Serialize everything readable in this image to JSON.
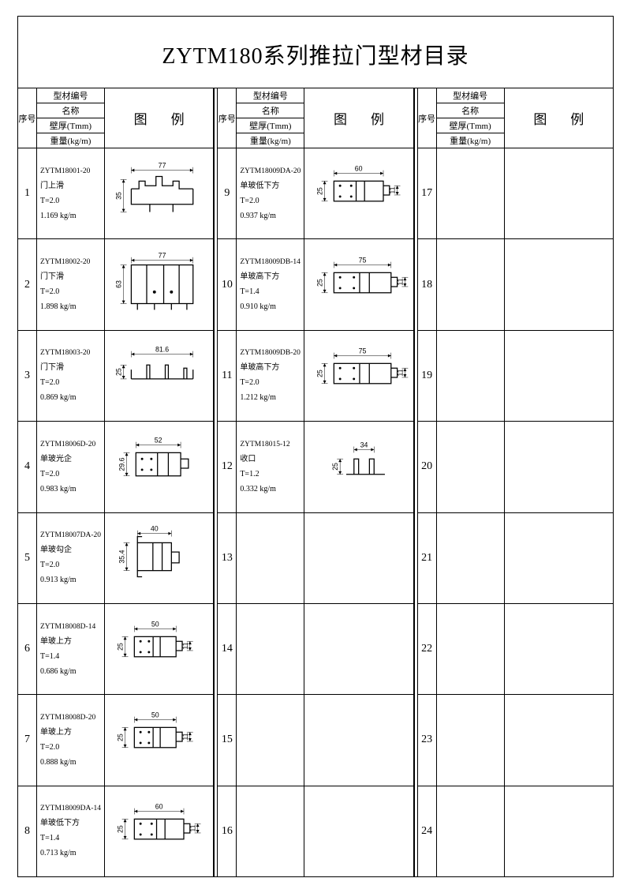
{
  "title": "ZYTM180系列推拉门型材目录",
  "header": {
    "seq": "序号",
    "code": "型材编号",
    "name": "名称",
    "thickness": "壁厚(Tmm)",
    "weight": "重量(kg/m)",
    "diagram": "图例"
  },
  "columns": [
    {
      "rows": [
        {
          "seq": "1",
          "code": "ZYTM18001-20",
          "name": "门上滑",
          "t": "T=2.0",
          "w": "1.169 kg/m",
          "dw": "77",
          "dh": "35",
          "profile": "upper"
        },
        {
          "seq": "2",
          "code": "ZYTM18002-20",
          "name": "门下滑",
          "t": "T=2.0",
          "w": "1.898 kg/m",
          "dw": "77",
          "dh": "63",
          "profile": "lower"
        },
        {
          "seq": "3",
          "code": "ZYTM18003-20",
          "name": "门下滑",
          "t": "T=2.0",
          "w": "0.869 kg/m",
          "dw": "81.6",
          "dh": "25",
          "profile": "track"
        },
        {
          "seq": "4",
          "code": "ZYTM18006D-20",
          "name": "单玻光企",
          "t": "T=2.0",
          "w": "0.983 kg/m",
          "dw": "52",
          "dh": "29.6",
          "profile": "stile"
        },
        {
          "seq": "5",
          "code": "ZYTM18007DA-20",
          "name": "单玻勾企",
          "t": "T=2.0",
          "w": "0.913 kg/m",
          "dw": "40",
          "dh": "35.4",
          "profile": "hook"
        },
        {
          "seq": "6",
          "code": "ZYTM18008D-14",
          "name": "单玻上方",
          "t": "T=1.4",
          "w": "0.686 kg/m",
          "dw": "50",
          "dh": "25",
          "profile": "rail"
        },
        {
          "seq": "7",
          "code": "ZYTM18008D-20",
          "name": "单玻上方",
          "t": "T=2.0",
          "w": "0.888 kg/m",
          "dw": "50",
          "dh": "25",
          "profile": "rail"
        },
        {
          "seq": "8",
          "code": "ZYTM18009DA-14",
          "name": "单玻低下方",
          "t": "T=1.4",
          "w": "0.713 kg/m",
          "dw": "60",
          "dh": "25",
          "profile": "rail2"
        }
      ]
    },
    {
      "rows": [
        {
          "seq": "9",
          "code": "ZYTM18009DA-20",
          "name": "单玻低下方",
          "t": "T=2.0",
          "w": "0.937 kg/m",
          "dw": "60",
          "dh": "25",
          "profile": "rail2"
        },
        {
          "seq": "10",
          "code": "ZYTM18009DB-14",
          "name": "单玻高下方",
          "t": "T=1.4",
          "w": "0.910 kg/m",
          "dw": "75",
          "dh": "25",
          "profile": "rail3"
        },
        {
          "seq": "11",
          "code": "ZYTM18009DB-20",
          "name": "单玻高下方",
          "t": "T=2.0",
          "w": "1.212 kg/m",
          "dw": "75",
          "dh": "25",
          "profile": "rail3"
        },
        {
          "seq": "12",
          "code": "ZYTM18015-12",
          "name": "收口",
          "t": "T=1.2",
          "w": "0.332 kg/m",
          "dw": "34",
          "dh": "25",
          "profile": "cap"
        },
        {
          "seq": "13"
        },
        {
          "seq": "14"
        },
        {
          "seq": "15"
        },
        {
          "seq": "16"
        }
      ]
    },
    {
      "rows": [
        {
          "seq": "17"
        },
        {
          "seq": "18"
        },
        {
          "seq": "19"
        },
        {
          "seq": "20"
        },
        {
          "seq": "21"
        },
        {
          "seq": "22"
        },
        {
          "seq": "23"
        },
        {
          "seq": "24"
        }
      ]
    }
  ],
  "colors": {
    "line": "#000000",
    "bg": "#ffffff"
  }
}
